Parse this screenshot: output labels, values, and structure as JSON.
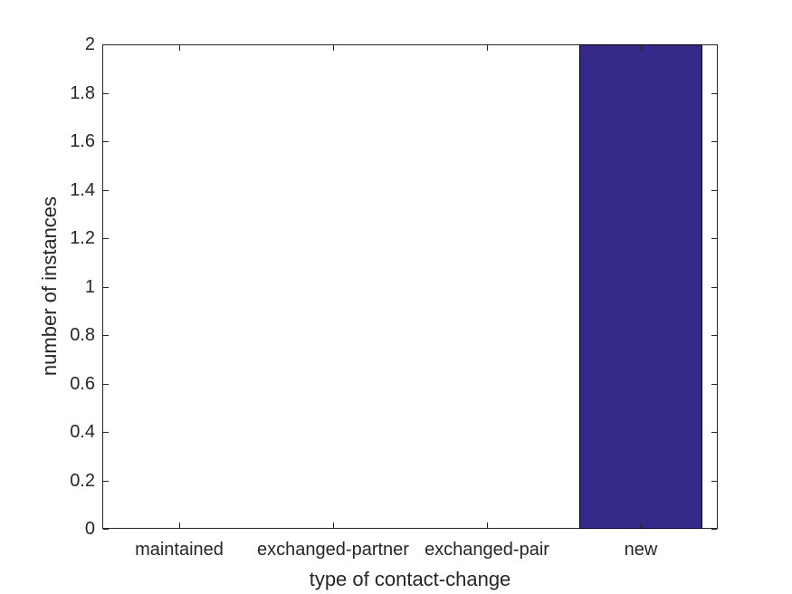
{
  "figure": {
    "background_color": "#ffffff",
    "axis_color": "#262626",
    "text_color": "#262626"
  },
  "chart_data": {
    "type": "bar",
    "title": "",
    "xlabel": "type of contact-change",
    "ylabel": "number of instances",
    "categories": [
      "maintained",
      "exchanged-partner",
      "exchanged-pair",
      "new"
    ],
    "values": [
      0,
      0,
      0,
      2
    ],
    "ylim": [
      0,
      2
    ],
    "ytick_step": 0.2,
    "ytick_labels": [
      "0",
      "0.2",
      "0.4",
      "0.6",
      "0.8",
      "1",
      "1.2",
      "1.4",
      "1.6",
      "1.8",
      "2"
    ],
    "bar_color": "#352A87",
    "bar_edge_color": "#000000",
    "bar_width_fraction": 0.8,
    "grid": false,
    "box": true,
    "tick_direction": "in",
    "legend": ""
  }
}
